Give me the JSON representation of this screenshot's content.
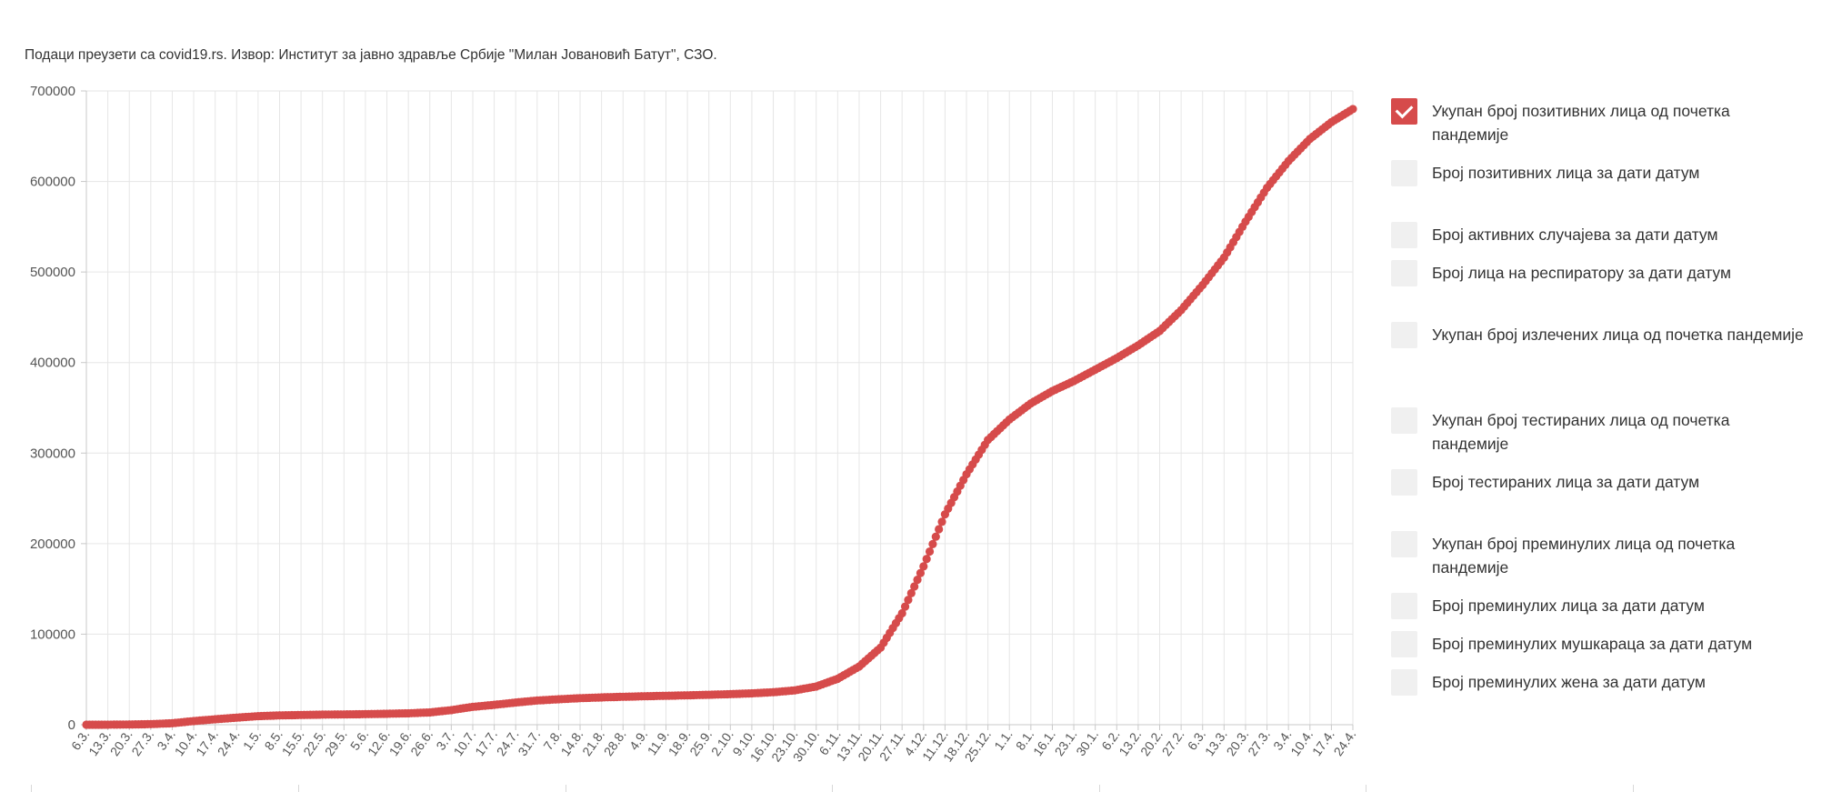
{
  "source_note": "Подаци преузети са covid19.rs. Извор: Институт за јавно здравље Србије \"Милан Јовановић Батут\", СЗО.",
  "colors": {
    "series": "#d64b4b",
    "grid": "#e6e6e6",
    "axis": "#c8c8c8",
    "checkbox_off": "#f0f0f0",
    "checkbox_on": "#d64b4b"
  },
  "legend": {
    "items": [
      {
        "label": "Укупан број позитивних лица од почетка пандемије",
        "checked": true
      },
      {
        "label": "Број позитивних лица за дати датум",
        "checked": false
      },
      {
        "label": "Број активних случајева за дати датум",
        "checked": false
      },
      {
        "label": "Број лица на респиратору за дати датум",
        "checked": false
      },
      {
        "label": "Укупан број излечених лица од почетка пандемије",
        "checked": false
      },
      {
        "label": "Укупан број тестираних лица од почетка пандемије",
        "checked": false
      },
      {
        "label": "Број тестираних лица за дати датум",
        "checked": false
      },
      {
        "label": "Укупан број преминулих лица од почетка пандемије",
        "checked": false
      },
      {
        "label": "Број преминулих лица за дати датум",
        "checked": false
      },
      {
        "label": "Број преминулих мушкараца за дати датум",
        "checked": false
      },
      {
        "label": "Број преминулих жена за дати датум",
        "checked": false
      }
    ]
  },
  "chart_data": {
    "type": "line",
    "title": "",
    "xlabel": "",
    "ylabel": "",
    "ylim": [
      0,
      700000
    ],
    "y_ticks": [
      "0",
      "100000",
      "200000",
      "300000",
      "400000",
      "500000",
      "600000",
      "700000"
    ],
    "grid": true,
    "legend_placement": "right",
    "categories": [
      "6.3.",
      "13.3.",
      "20.3.",
      "27.3.",
      "3.4.",
      "10.4.",
      "17.4.",
      "24.4.",
      "1.5.",
      "8.5.",
      "15.5.",
      "22.5.",
      "29.5.",
      "5.6.",
      "12.6.",
      "19.6.",
      "26.6.",
      "3.7.",
      "10.7.",
      "17.7.",
      "24.7.",
      "31.7.",
      "7.8.",
      "14.8.",
      "21.8.",
      "28.8.",
      "4.9.",
      "11.9.",
      "18.9.",
      "25.9.",
      "2.10.",
      "9.10.",
      "16.10.",
      "23.10.",
      "30.10.",
      "6.11.",
      "13.11.",
      "20.11.",
      "27.11.",
      "4.12.",
      "11.12.",
      "18.12.",
      "25.12.",
      "1.1.",
      "8.1.",
      "16.1.",
      "23.1.",
      "30.1.",
      "6.2.",
      "13.2.",
      "20.2.",
      "27.2.",
      "6.3.",
      "13.3.",
      "20.3.",
      "27.3.",
      "3.4.",
      "10.4.",
      "17.4.",
      "24.4."
    ],
    "series": [
      {
        "values": [
          1,
          48,
          222,
          659,
          1624,
          4054,
          5994,
          7779,
          9464,
          10295,
          10733,
          11159,
          11381,
          11667,
          12102,
          12616,
          13565,
          16131,
          19717,
          21947,
          24520,
          26738,
          28099,
          29317,
          30148,
          30831,
          31434,
          31949,
          32461,
          33080,
          33781,
          34685,
          35908,
          37937,
          42208,
          50737,
          64277,
          85164,
          122999,
          174861,
          232316,
          276627,
          314558,
          337113,
          354931,
          368521,
          379540,
          392177,
          404922,
          419001,
          434896,
          457923,
          485633,
          515950,
          555621,
          593000,
          622548,
          647035,
          665500,
          680000
        ]
      }
    ]
  }
}
